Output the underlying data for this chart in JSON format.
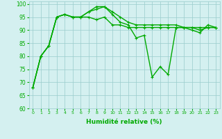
{
  "xlabel": "Humidité relative (%)",
  "background_color": "#d4f0f0",
  "grid_color": "#99cccc",
  "line_color": "#00aa00",
  "xlim": [
    -0.5,
    23.5
  ],
  "ylim": [
    60,
    101
  ],
  "yticks": [
    60,
    65,
    70,
    75,
    80,
    85,
    90,
    95,
    100
  ],
  "xticks": [
    0,
    1,
    2,
    3,
    4,
    5,
    6,
    7,
    8,
    9,
    10,
    11,
    12,
    13,
    14,
    15,
    16,
    17,
    18,
    19,
    20,
    21,
    22,
    23
  ],
  "series1": [
    68,
    80,
    84,
    95,
    96,
    95,
    95,
    97,
    99,
    99,
    97,
    95,
    93,
    92,
    92,
    92,
    92,
    92,
    92,
    91,
    91,
    91,
    91,
    91
  ],
  "series2": [
    68,
    80,
    84,
    95,
    96,
    95,
    95,
    97,
    98,
    99,
    96,
    93,
    92,
    87,
    88,
    72,
    76,
    73,
    91,
    91,
    90,
    89,
    92,
    91
  ],
  "series3": [
    68,
    80,
    84,
    95,
    96,
    95,
    95,
    95,
    94,
    95,
    92,
    92,
    91,
    91,
    91,
    91,
    91,
    91,
    91,
    91,
    91,
    90,
    91,
    91
  ],
  "markersize": 2.5,
  "linewidth": 1.0
}
